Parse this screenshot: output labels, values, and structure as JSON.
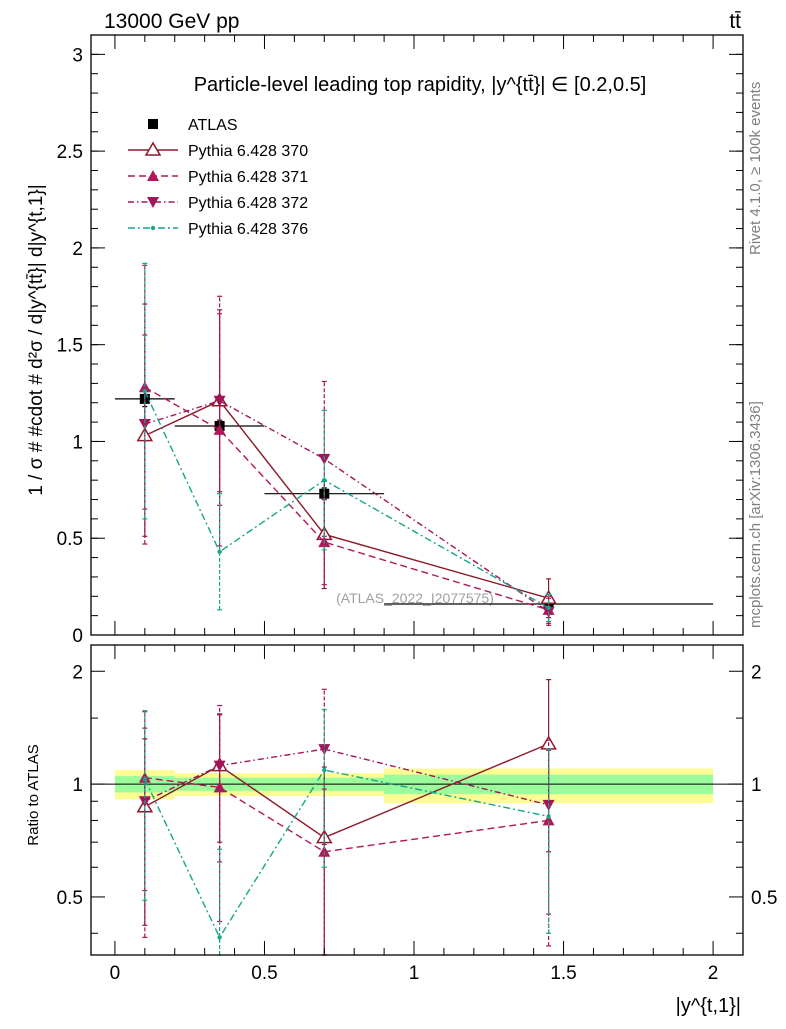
{
  "header": {
    "energy_label": "13000 GeV pp",
    "process_label": "tt̄"
  },
  "side_labels": {
    "rivet": "Rivet 4.1.0, ≥ 100k events",
    "mcplots": "mcplots.cern.ch [arXiv:1306.3436]"
  },
  "watermark": "(ATLAS_2022_I2077575)",
  "colors": {
    "data": "#000000",
    "p370": "#8b1a2b",
    "p371": "#b0185a",
    "p372": "#a3155a",
    "p376": "#17a589",
    "band_inner": "#9cfc9c",
    "band_outer": "#fcfc94"
  },
  "chart_data": [
    {
      "type": "scatter",
      "title": "Particle-level leading top rapidity, |y^{tt̄}| ∈ [0.2,0.5]",
      "xlabel": "|y^{t,1}|",
      "ylabel": "1 / σ # #cdot # d²σ / d|y^{tt̄}| d|y^{t,1}|",
      "xlim": [
        -0.08,
        2.1
      ],
      "ylim": [
        0,
        3.1
      ],
      "yticks": [
        0,
        0.5,
        1,
        1.5,
        2,
        2.5,
        3
      ],
      "ytick_labels": [
        "0",
        "0.5",
        "1",
        "1.5",
        "2",
        "2.5",
        "3"
      ],
      "legend_position": "top-left",
      "x": [
        0.1,
        0.35,
        0.7,
        1.45
      ],
      "xerr": [
        0.1,
        0.15,
        0.2,
        0.55
      ],
      "series": [
        {
          "name": "ATLAS",
          "key": "data",
          "style": "data",
          "values": [
            1.22,
            1.08,
            0.73,
            0.16
          ],
          "err": [
            0.04,
            0.03,
            0.03,
            0.02
          ]
        },
        {
          "name": "Pythia 6.428 370",
          "key": "p370",
          "style": "solid",
          "marker": "triangle-up-open",
          "values": [
            1.03,
            1.21,
            0.52,
            0.19
          ],
          "err": [
            0.52,
            0.47,
            0.28,
            0.1
          ]
        },
        {
          "name": "Pythia 6.428 371",
          "key": "p371",
          "style": "dash",
          "marker": "triangle-up",
          "values": [
            1.28,
            1.06,
            0.48,
            0.13
          ],
          "err": [
            0.63,
            0.6,
            0.22,
            0.07
          ]
        },
        {
          "name": "Pythia 6.428 372",
          "key": "p372",
          "style": "dashdot",
          "marker": "triangle-down",
          "values": [
            1.09,
            1.21,
            0.91,
            0.12
          ],
          "err": [
            0.62,
            0.54,
            0.4,
            0.07
          ]
        },
        {
          "name": "Pythia 6.428 376",
          "key": "p376",
          "style": "dashdot2",
          "marker": "dot",
          "values": [
            1.26,
            0.43,
            0.8,
            0.14
          ],
          "err": [
            0.66,
            0.3,
            0.36,
            0.07
          ]
        }
      ]
    },
    {
      "type": "scatter",
      "title": "",
      "xlabel": "|y^{t,1}|",
      "ylabel": "Ratio to ATLAS",
      "xlim": [
        -0.08,
        2.1
      ],
      "ylim": [
        0.35,
        2.35
      ],
      "yticks": [
        0.5,
        1,
        2
      ],
      "ytick_labels": [
        "0.5",
        "1",
        "2"
      ],
      "xticks": [
        0,
        0.5,
        1,
        1.5,
        2
      ],
      "xtick_labels": [
        "0",
        "0.5",
        "1",
        "1.5",
        "2"
      ],
      "bands": [
        {
          "x0": 0.0,
          "x1": 0.2,
          "inner": [
            0.95,
            1.05
          ],
          "outer": [
            0.91,
            1.09
          ]
        },
        {
          "x0": 0.2,
          "x1": 0.5,
          "inner": [
            0.96,
            1.04
          ],
          "outer": [
            0.93,
            1.07
          ]
        },
        {
          "x0": 0.5,
          "x1": 0.9,
          "inner": [
            0.96,
            1.04
          ],
          "outer": [
            0.93,
            1.07
          ]
        },
        {
          "x0": 0.9,
          "x1": 2.0,
          "inner": [
            0.94,
            1.06
          ],
          "outer": [
            0.89,
            1.1
          ]
        }
      ],
      "reference_line": 1,
      "series": [
        {
          "name": "Pythia 6.428 370",
          "key": "p370",
          "style": "solid",
          "marker": "triangle-up-open",
          "values": [
            0.87,
            1.12,
            0.72,
            1.28
          ],
          "err": [
            0.45,
            0.42,
            0.39,
            0.62
          ]
        },
        {
          "name": "Pythia 6.428 371",
          "key": "p371",
          "style": "dash",
          "marker": "triangle-up",
          "values": [
            1.04,
            0.98,
            0.66,
            0.8
          ],
          "err": [
            0.52,
            0.55,
            0.31,
            0.43
          ]
        },
        {
          "name": "Pythia 6.428 372",
          "key": "p372",
          "style": "dashdot",
          "marker": "triangle-down",
          "values": [
            0.9,
            1.12,
            1.24,
            0.88
          ],
          "err": [
            0.51,
            0.5,
            0.55,
            0.43
          ]
        },
        {
          "name": "Pythia 6.428 376",
          "key": "p376",
          "style": "dashdot2",
          "marker": "dot",
          "values": [
            1.03,
            0.39,
            1.09,
            0.82
          ],
          "err": [
            0.54,
            0.28,
            0.49,
            0.42
          ]
        }
      ]
    }
  ]
}
